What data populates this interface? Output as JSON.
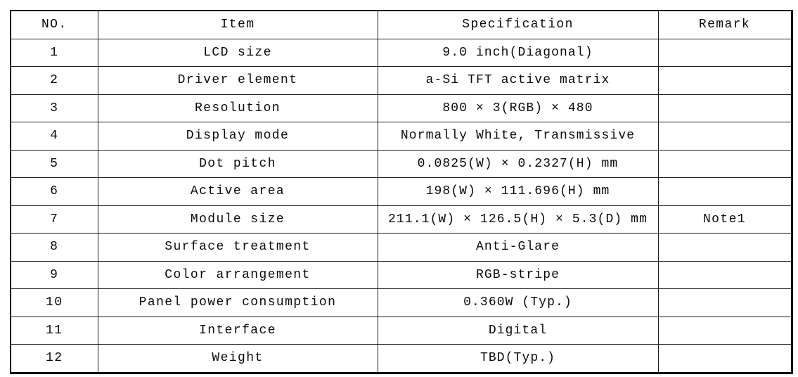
{
  "colors": {
    "background": "#ffffff",
    "border": "#000000",
    "text": "#0a0a0a"
  },
  "table": {
    "headers": [
      "NO.",
      "Item",
      "Specification",
      "Remark"
    ],
    "rows": [
      {
        "no": "1",
        "item": "LCD size",
        "spec": "9.0 inch(Diagonal)",
        "remark": ""
      },
      {
        "no": "2",
        "item": "Driver element",
        "spec": "a-Si TFT active matrix",
        "remark": ""
      },
      {
        "no": "3",
        "item": "Resolution",
        "spec": "800 × 3(RGB) × 480",
        "remark": ""
      },
      {
        "no": "4",
        "item": "Display mode",
        "spec": "Normally White, Transmissive",
        "remark": ""
      },
      {
        "no": "5",
        "item": "Dot pitch",
        "spec": "0.0825(W) × 0.2327(H) mm",
        "remark": ""
      },
      {
        "no": "6",
        "item": "Active area",
        "spec": "198(W) × 111.696(H) mm",
        "remark": ""
      },
      {
        "no": "7",
        "item": "Module size",
        "spec": "211.1(W) × 126.5(H) × 5.3(D) mm",
        "remark": "Note1"
      },
      {
        "no": "8",
        "item": "Surface treatment",
        "spec": "Anti-Glare",
        "remark": ""
      },
      {
        "no": "9",
        "item": "Color arrangement",
        "spec": "RGB-stripe",
        "remark": ""
      },
      {
        "no": "10",
        "item": "Panel power consumption",
        "spec": "0.360W (Typ.)",
        "remark": ""
      },
      {
        "no": "11",
        "item": "Interface",
        "spec": "Digital",
        "remark": ""
      },
      {
        "no": "12",
        "item": "Weight",
        "spec": "TBD(Typ.)",
        "remark": ""
      }
    ]
  }
}
